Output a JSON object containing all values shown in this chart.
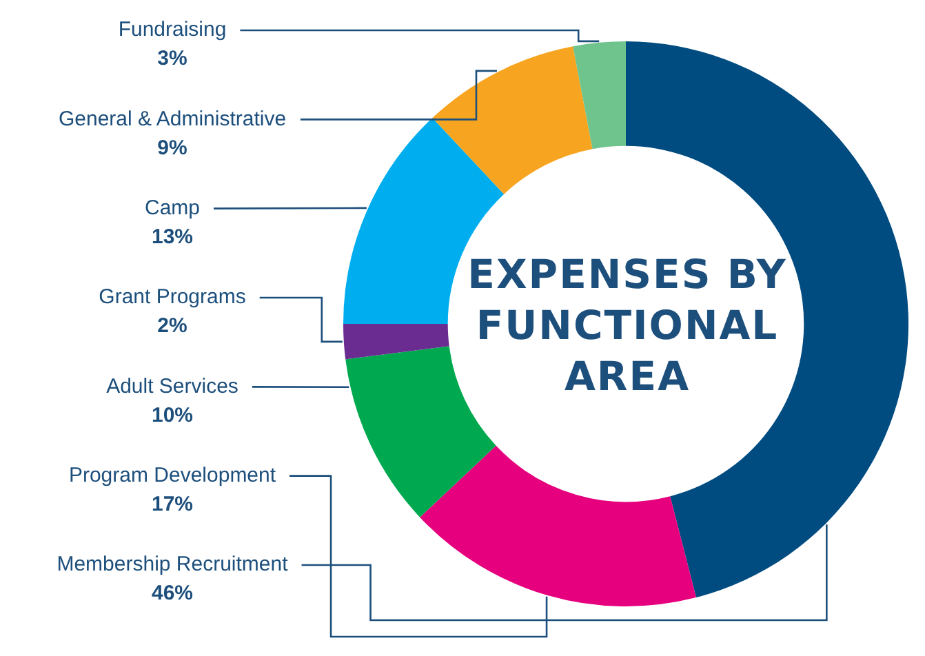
{
  "chart_data": {
    "type": "donut",
    "title": "EXPENSES BY FUNCTIONAL AREA",
    "categories": [
      "Membership Recruitment",
      "Program Development",
      "Adult Services",
      "Grant Programs",
      "Camp",
      "General & Administrative",
      "Fundraising"
    ],
    "values": [
      46,
      17,
      10,
      2,
      13,
      9,
      3
    ],
    "value_labels": [
      "46%",
      "17%",
      "10%",
      "2%",
      "13%",
      "9%",
      "3%"
    ],
    "colors": [
      "#004b80",
      "#e6007e",
      "#00a94f",
      "#6a2c91",
      "#00aeef",
      "#f7a520",
      "#6fc48d"
    ],
    "legend": false
  }
}
